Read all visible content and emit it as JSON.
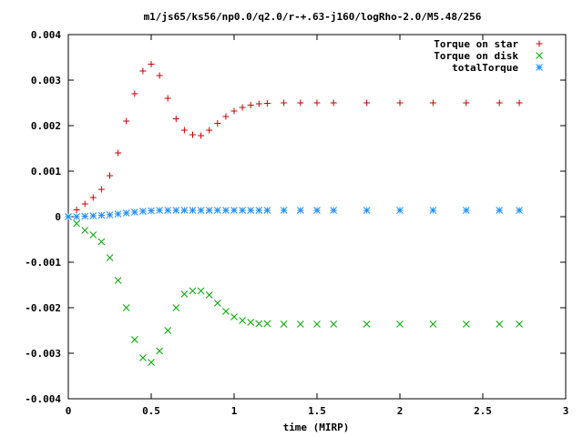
{
  "chart_data": {
    "type": "scatter",
    "title": "m1/js65/ks56/np0.0/q2.0/r-+.63-j160/logRho-2.0/M5.48/256",
    "xlabel": "time (MIRP)",
    "ylabel": "",
    "xlim": [
      0,
      3
    ],
    "ylim": [
      -0.004,
      0.004
    ],
    "xticks": [
      0,
      0.5,
      1,
      1.5,
      2,
      2.5,
      3
    ],
    "xtick_labels": [
      "0",
      "0.5",
      "1",
      "1.5",
      "2",
      "2.5",
      "3"
    ],
    "yticks": [
      -0.004,
      -0.003,
      -0.002,
      -0.001,
      0,
      0.001,
      0.002,
      0.003,
      0.004
    ],
    "ytick_labels": [
      "-0.004",
      "-0.003",
      "-0.002",
      "-0.001",
      "0",
      "0.001",
      "0.002",
      "0.003",
      "0.004"
    ],
    "grid": false,
    "legend_position": "top-right",
    "series": [
      {
        "name": "Torque on star",
        "marker": "plus",
        "color": "#cc0000",
        "x": [
          0,
          0.05,
          0.1,
          0.15,
          0.2,
          0.25,
          0.3,
          0.35,
          0.4,
          0.45,
          0.5,
          0.55,
          0.6,
          0.65,
          0.7,
          0.75,
          0.8,
          0.85,
          0.9,
          0.95,
          1.0,
          1.05,
          1.1,
          1.15,
          1.2,
          1.3,
          1.4,
          1.5,
          1.6,
          1.8,
          2.0,
          2.2,
          2.4,
          2.6,
          2.72
        ],
        "y": [
          0,
          0.00015,
          0.00028,
          0.00042,
          0.0006,
          0.0009,
          0.0014,
          0.0021,
          0.0027,
          0.0032,
          0.00335,
          0.0031,
          0.0026,
          0.00215,
          0.0019,
          0.0018,
          0.00178,
          0.0019,
          0.00205,
          0.0022,
          0.00232,
          0.0024,
          0.00245,
          0.00248,
          0.00249,
          0.0025,
          0.0025,
          0.0025,
          0.0025,
          0.0025,
          0.0025,
          0.0025,
          0.0025,
          0.0025,
          0.0025
        ]
      },
      {
        "name": "Torque on disk",
        "marker": "cross",
        "color": "#00aa00",
        "x": [
          0,
          0.05,
          0.1,
          0.15,
          0.2,
          0.25,
          0.3,
          0.35,
          0.4,
          0.45,
          0.5,
          0.55,
          0.6,
          0.65,
          0.7,
          0.75,
          0.8,
          0.85,
          0.9,
          0.95,
          1.0,
          1.05,
          1.1,
          1.15,
          1.2,
          1.3,
          1.4,
          1.5,
          1.6,
          1.8,
          2.0,
          2.2,
          2.4,
          2.6,
          2.72
        ],
        "y": [
          0,
          -0.00015,
          -0.0003,
          -0.0004,
          -0.00055,
          -0.0009,
          -0.0014,
          -0.002,
          -0.0027,
          -0.0031,
          -0.0032,
          -0.00295,
          -0.0025,
          -0.002,
          -0.0017,
          -0.00163,
          -0.00163,
          -0.00172,
          -0.0019,
          -0.00208,
          -0.0022,
          -0.00228,
          -0.00232,
          -0.00235,
          -0.00235,
          -0.00236,
          -0.00236,
          -0.00236,
          -0.00236,
          -0.00236,
          -0.00236,
          -0.00236,
          -0.00236,
          -0.00236,
          -0.00236
        ]
      },
      {
        "name": "totalTorque",
        "marker": "star",
        "color": "#1e90ff",
        "x": [
          0,
          0.05,
          0.1,
          0.15,
          0.2,
          0.25,
          0.3,
          0.35,
          0.4,
          0.45,
          0.5,
          0.55,
          0.6,
          0.65,
          0.7,
          0.75,
          0.8,
          0.85,
          0.9,
          0.95,
          1.0,
          1.05,
          1.1,
          1.15,
          1.2,
          1.3,
          1.4,
          1.5,
          1.6,
          1.8,
          2.0,
          2.2,
          2.4,
          2.6,
          2.72
        ],
        "y": [
          0,
          0,
          1e-05,
          2e-05,
          3e-05,
          4e-05,
          6e-05,
          8e-05,
          0.0001,
          0.00012,
          0.00013,
          0.00014,
          0.00014,
          0.00014,
          0.00014,
          0.00014,
          0.00014,
          0.00014,
          0.00014,
          0.00014,
          0.00014,
          0.00014,
          0.00014,
          0.00014,
          0.00014,
          0.00014,
          0.00014,
          0.00014,
          0.00014,
          0.00014,
          0.00014,
          0.00014,
          0.00014,
          0.00014,
          0.00014
        ]
      }
    ]
  }
}
